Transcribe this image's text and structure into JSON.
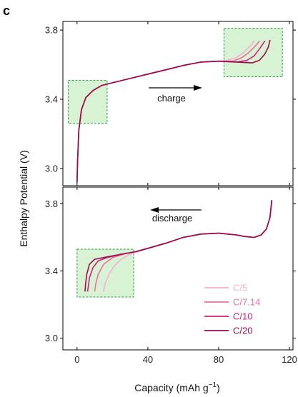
{
  "chart_data": {
    "type": "line",
    "panel_label": "c",
    "xlabel": "Capacity (mAh g",
    "xlabel_sup": "−1",
    "xlabel_end": ")",
    "ylabel": "Enthalpy Potential (V)",
    "xlim": [
      -8,
      122
    ],
    "x_ticks": [
      0,
      40,
      80,
      120
    ],
    "x_tick_labels": [
      "0",
      "40",
      "80",
      "120"
    ],
    "legend_placement": "bottom-right of lower panel",
    "series": [
      {
        "name": "C/5",
        "color": "#f6b2cf"
      },
      {
        "name": "C/7.14",
        "color": "#ea6fa3"
      },
      {
        "name": "C/10",
        "color": "#d61f7a"
      },
      {
        "name": "C/20",
        "color": "#990b4b"
      }
    ],
    "panels": [
      {
        "name": "charge",
        "annotation": "charge",
        "arrow_direction": "right",
        "ylim": [
          2.9,
          3.85
        ],
        "y_ticks": [
          3.0,
          3.4,
          3.8
        ],
        "y_tick_labels": [
          "3.0",
          "3.4",
          "3.8"
        ],
        "highlight_boxes": [
          {
            "x": [
              -5,
              17
            ],
            "y": [
              3.26,
              3.51
            ]
          },
          {
            "x": [
              83,
              116
            ],
            "y": [
              3.53,
              3.81
            ]
          }
        ],
        "curves": [
          [
            [
              0,
              2.92
            ],
            [
              0.3,
              3.05
            ],
            [
              1,
              3.22
            ],
            [
              2.5,
              3.34
            ],
            [
              5,
              3.41
            ],
            [
              9,
              3.45
            ],
            [
              14,
              3.48
            ],
            [
              20,
              3.495
            ],
            [
              30,
              3.52
            ],
            [
              40,
              3.545
            ],
            [
              50,
              3.57
            ],
            [
              60,
              3.595
            ],
            [
              70,
              3.615
            ],
            [
              80,
              3.62
            ],
            [
              85,
              3.625
            ],
            [
              90,
              3.64
            ],
            [
              94,
              3.67
            ],
            [
              97,
              3.7
            ],
            [
              100,
              3.735
            ]
          ],
          [
            [
              0,
              2.92
            ],
            [
              0.3,
              3.05
            ],
            [
              1,
              3.22
            ],
            [
              2.5,
              3.34
            ],
            [
              5,
              3.41
            ],
            [
              9,
              3.45
            ],
            [
              14,
              3.48
            ],
            [
              20,
              3.495
            ],
            [
              30,
              3.52
            ],
            [
              40,
              3.545
            ],
            [
              50,
              3.57
            ],
            [
              60,
              3.595
            ],
            [
              70,
              3.615
            ],
            [
              80,
              3.62
            ],
            [
              88,
              3.62
            ],
            [
              93,
              3.64
            ],
            [
              97,
              3.67
            ],
            [
              100,
              3.7
            ],
            [
              103,
              3.735
            ]
          ],
          [
            [
              0,
              2.92
            ],
            [
              0.3,
              3.05
            ],
            [
              1,
              3.22
            ],
            [
              2.5,
              3.34
            ],
            [
              5,
              3.41
            ],
            [
              9,
              3.45
            ],
            [
              14,
              3.48
            ],
            [
              20,
              3.495
            ],
            [
              30,
              3.52
            ],
            [
              40,
              3.545
            ],
            [
              50,
              3.57
            ],
            [
              60,
              3.595
            ],
            [
              70,
              3.615
            ],
            [
              80,
              3.62
            ],
            [
              90,
              3.615
            ],
            [
              96,
              3.625
            ],
            [
              100,
              3.65
            ],
            [
              103,
              3.69
            ],
            [
              106,
              3.735
            ]
          ],
          [
            [
              0,
              2.92
            ],
            [
              0.3,
              3.05
            ],
            [
              1,
              3.22
            ],
            [
              2.5,
              3.34
            ],
            [
              5,
              3.41
            ],
            [
              9,
              3.45
            ],
            [
              14,
              3.48
            ],
            [
              20,
              3.495
            ],
            [
              30,
              3.52
            ],
            [
              40,
              3.545
            ],
            [
              50,
              3.57
            ],
            [
              60,
              3.595
            ],
            [
              70,
              3.615
            ],
            [
              80,
              3.62
            ],
            [
              90,
              3.615
            ],
            [
              99,
              3.61
            ],
            [
              103,
              3.625
            ],
            [
              106,
              3.66
            ],
            [
              108,
              3.7
            ],
            [
              109,
              3.74
            ]
          ]
        ]
      },
      {
        "name": "discharge",
        "annotation": "discharge",
        "arrow_direction": "left",
        "ylim": [
          2.93,
          3.9
        ],
        "y_ticks": [
          3.0,
          3.4,
          3.8
        ],
        "y_tick_labels": [
          "3.0",
          "3.4",
          "3.8"
        ],
        "highlight_boxes": [
          {
            "x": [
              0,
              32
            ],
            "y": [
              3.245,
              3.53
            ]
          }
        ],
        "curves": [
          [
            [
              110,
              3.82
            ],
            [
              109,
              3.72
            ],
            [
              107,
              3.65
            ],
            [
              104,
              3.615
            ],
            [
              100,
              3.6
            ],
            [
              95,
              3.605
            ],
            [
              90,
              3.615
            ],
            [
              80,
              3.625
            ],
            [
              70,
              3.62
            ],
            [
              60,
              3.6
            ],
            [
              50,
              3.565
            ],
            [
              40,
              3.535
            ],
            [
              33,
              3.51
            ],
            [
              30,
              3.5
            ],
            [
              25,
              3.47
            ],
            [
              21,
              3.43
            ],
            [
              18,
              3.38
            ],
            [
              16,
              3.33
            ],
            [
              15,
              3.28
            ]
          ],
          [
            [
              110,
              3.82
            ],
            [
              109,
              3.72
            ],
            [
              107,
              3.65
            ],
            [
              104,
              3.615
            ],
            [
              100,
              3.6
            ],
            [
              95,
              3.605
            ],
            [
              90,
              3.615
            ],
            [
              80,
              3.625
            ],
            [
              70,
              3.62
            ],
            [
              60,
              3.6
            ],
            [
              50,
              3.565
            ],
            [
              40,
              3.535
            ],
            [
              33,
              3.515
            ],
            [
              28,
              3.505
            ],
            [
              20,
              3.48
            ],
            [
              15,
              3.44
            ],
            [
              12,
              3.38
            ],
            [
              10.5,
              3.32
            ],
            [
              10,
              3.28
            ]
          ],
          [
            [
              110,
              3.82
            ],
            [
              109,
              3.72
            ],
            [
              107,
              3.65
            ],
            [
              104,
              3.615
            ],
            [
              100,
              3.6
            ],
            [
              95,
              3.605
            ],
            [
              90,
              3.615
            ],
            [
              80,
              3.625
            ],
            [
              70,
              3.62
            ],
            [
              60,
              3.6
            ],
            [
              50,
              3.565
            ],
            [
              40,
              3.535
            ],
            [
              33,
              3.515
            ],
            [
              25,
              3.5
            ],
            [
              17,
              3.48
            ],
            [
              12,
              3.46
            ],
            [
              9,
              3.42
            ],
            [
              7,
              3.36
            ],
            [
              6,
              3.28
            ]
          ],
          [
            [
              110,
              3.82
            ],
            [
              109,
              3.72
            ],
            [
              107,
              3.65
            ],
            [
              104,
              3.615
            ],
            [
              100,
              3.6
            ],
            [
              95,
              3.605
            ],
            [
              90,
              3.615
            ],
            [
              80,
              3.625
            ],
            [
              70,
              3.62
            ],
            [
              60,
              3.6
            ],
            [
              50,
              3.565
            ],
            [
              40,
              3.535
            ],
            [
              33,
              3.515
            ],
            [
              25,
              3.5
            ],
            [
              15,
              3.48
            ],
            [
              10,
              3.47
            ],
            [
              7,
              3.44
            ],
            [
              5.5,
              3.38
            ],
            [
              4.8,
              3.32
            ],
            [
              4.5,
              3.28
            ]
          ]
        ]
      }
    ]
  }
}
